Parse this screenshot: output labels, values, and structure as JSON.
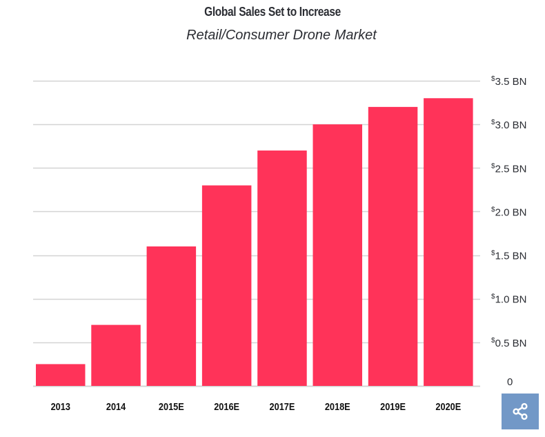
{
  "chart_data": {
    "type": "bar",
    "title": "Global Sales Set to Increase",
    "subtitle": "Retail/Consumer Drone Market",
    "categories": [
      "2013",
      "2014",
      "2015E",
      "2016E",
      "2017E",
      "2018E",
      "2019E",
      "2020E"
    ],
    "values": [
      0.25,
      0.7,
      1.6,
      2.3,
      2.7,
      3.0,
      3.2,
      3.3
    ],
    "unit": "$ BN",
    "xlabel": "",
    "ylabel": "",
    "ylim": [
      0,
      3.5
    ],
    "yticks": [
      {
        "value": 0,
        "currency": "",
        "label": "0"
      },
      {
        "value": 0.5,
        "currency": "$",
        "label": "0.5 BN"
      },
      {
        "value": 1.0,
        "currency": "$",
        "label": "1.0 BN"
      },
      {
        "value": 1.5,
        "currency": "$",
        "label": "1.5 BN"
      },
      {
        "value": 2.0,
        "currency": "$",
        "label": "2.0 BN"
      },
      {
        "value": 2.5,
        "currency": "$",
        "label": "2.5 BN"
      },
      {
        "value": 3.0,
        "currency": "$",
        "label": "3.0 BN"
      },
      {
        "value": 3.5,
        "currency": "$",
        "label": "3.5 BN"
      }
    ],
    "yaxis_side": "right",
    "grid": true,
    "legend": "none",
    "bar_color": "#ff3359",
    "grid_color": "#d3d3d3"
  },
  "share": {
    "icon": "share-icon",
    "color": "#7298c7"
  }
}
